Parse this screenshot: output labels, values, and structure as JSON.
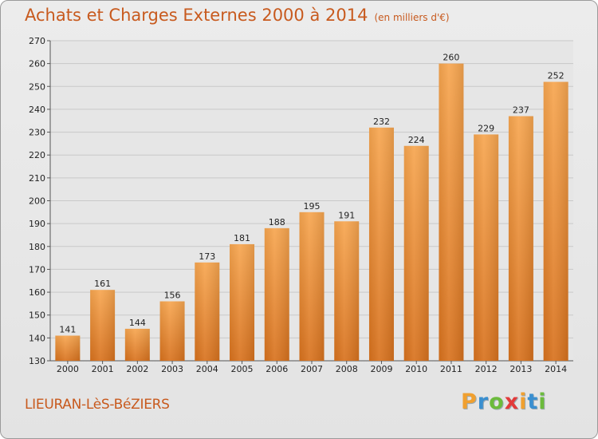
{
  "header": {
    "title": "Achats et Charges Externes 2000 à 2014",
    "unit": "(en milliers d'€)"
  },
  "footer": {
    "commune": "LIEURAN-LèS-BéZIERS",
    "logo": "Proxiti"
  },
  "colors": {
    "bar_light": "#f6a54f",
    "bar_dark": "#d9741f",
    "title": "#c85a1e",
    "grid": "#c9c9c9"
  },
  "chart_data": {
    "type": "bar",
    "title": "Achats et Charges Externes 2000 à 2014",
    "subtitle": "(en milliers d'€)",
    "categories": [
      "2000",
      "2001",
      "2002",
      "2003",
      "2004",
      "2005",
      "2006",
      "2007",
      "2008",
      "2009",
      "2010",
      "2011",
      "2012",
      "2013",
      "2014"
    ],
    "values": [
      141,
      161,
      144,
      156,
      173,
      181,
      188,
      195,
      191,
      232,
      224,
      260,
      229,
      237,
      252
    ],
    "ylim": [
      130,
      270
    ],
    "yticks": [
      130,
      140,
      150,
      160,
      170,
      180,
      190,
      200,
      210,
      220,
      230,
      240,
      250,
      260,
      270
    ],
    "grid": true,
    "data_labels": true
  }
}
